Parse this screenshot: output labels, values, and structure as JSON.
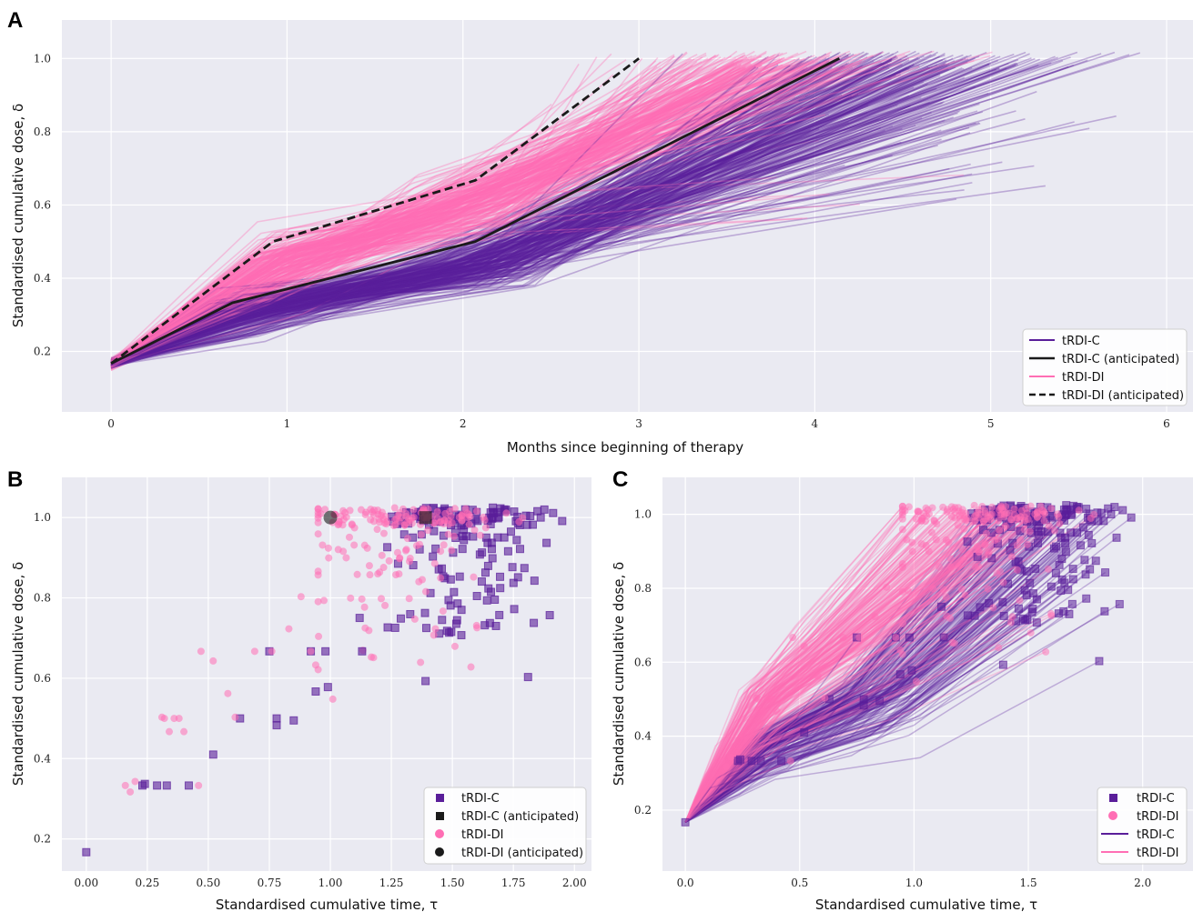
{
  "colors": {
    "bg": "#eaeaf2",
    "grid": "#ffffff",
    "c": "#5a1e9a",
    "di": "#ff6eb4",
    "ant": "#1a1a1a"
  },
  "chart_data": [
    {
      "panel": "A",
      "type": "line",
      "xlabel": "Months since beginning of therapy",
      "ylabel": "Standardised cumulative dose, δ",
      "xlim": [
        -0.28,
        6.15
      ],
      "ylim": [
        0.035,
        1.105
      ],
      "xticks": [
        "0",
        "1",
        "2",
        "3",
        "4",
        "5",
        "6"
      ],
      "yticks": [
        "0.2",
        "0.4",
        "0.6",
        "0.8",
        "1.0"
      ],
      "grid": true,
      "legend_position": "lower right",
      "legend": [
        "tRDI-C",
        "tRDI-C (anticipated)",
        "tRDI-DI",
        "tRDI-DI (anticipated)"
      ],
      "series": [
        {
          "name": "tRDI-C (anticipated)",
          "style": "solid",
          "x": [
            0,
            0.69,
            2.07,
            4.14
          ],
          "y": [
            0.167,
            0.333,
            0.5,
            1.0
          ]
        },
        {
          "name": "tRDI-DI (anticipated)",
          "style": "dashed",
          "x": [
            0,
            0.92,
            2.07,
            3.0
          ],
          "y": [
            0.167,
            0.5,
            0.667,
            1.0
          ]
        }
      ],
      "bundle_note_C": "~250 patient trajectories, final time 2.9–5.9 months",
      "bundle_note_DI": "~250 patient trajectories, final time 2.3–5.8 months"
    },
    {
      "panel": "B",
      "type": "scatter",
      "xlabel": "Standardised cumulative time, τ",
      "ylabel": "Standardised cumulative dose, δ",
      "xlim": [
        -0.1,
        2.07
      ],
      "ylim": [
        0.12,
        1.1
      ],
      "xticks": [
        "0.00",
        "0.25",
        "0.50",
        "0.75",
        "1.00",
        "1.25",
        "1.50",
        "1.75",
        "2.00"
      ],
      "yticks": [
        "0.2",
        "0.4",
        "0.6",
        "0.8",
        "1.0"
      ],
      "grid": true,
      "legend_position": "lower right",
      "legend": [
        "tRDI-C",
        "tRDI-C (anticipated)",
        "tRDI-DI",
        "tRDI-DI (anticipated)"
      ],
      "anticipated": {
        "tRDI-C": [
          1.39,
          1.0
        ],
        "tRDI-DI": [
          1.0,
          1.0
        ]
      },
      "highlighted_points_C": [
        [
          0,
          0.167
        ],
        [
          0.23,
          0.333
        ],
        [
          0.24,
          0.337
        ],
        [
          0.29,
          0.333
        ],
        [
          0.33,
          0.333
        ],
        [
          0.42,
          0.333
        ],
        [
          0.52,
          0.41
        ],
        [
          0.63,
          0.5
        ],
        [
          0.75,
          0.667
        ],
        [
          0.78,
          0.483
        ],
        [
          0.78,
          0.5
        ],
        [
          0.85,
          0.495
        ],
        [
          0.92,
          0.667
        ],
        [
          0.94,
          0.567
        ],
        [
          0.98,
          0.667
        ],
        [
          0.99,
          0.578
        ],
        [
          1.13,
          0.667
        ],
        [
          1.39,
          0.593
        ],
        [
          1.81,
          0.603
        ]
      ],
      "highlighted_points_DI": [
        [
          0.16,
          0.333
        ],
        [
          0.18,
          0.317
        ],
        [
          0.2,
          0.343
        ],
        [
          0.31,
          0.503
        ],
        [
          0.32,
          0.5
        ],
        [
          0.34,
          0.467
        ],
        [
          0.36,
          0.5
        ],
        [
          0.38,
          0.5
        ],
        [
          0.4,
          0.467
        ],
        [
          0.46,
          0.333
        ],
        [
          0.47,
          0.667
        ],
        [
          0.52,
          0.643
        ],
        [
          0.58,
          0.562
        ],
        [
          0.61,
          0.503
        ],
        [
          0.69,
          0.667
        ],
        [
          0.76,
          0.667
        ],
        [
          0.83,
          0.723
        ],
        [
          0.88,
          0.803
        ],
        [
          0.92,
          0.667
        ],
        [
          0.94,
          0.633
        ],
        [
          1.01,
          0.548
        ]
      ]
    },
    {
      "panel": "C",
      "type": "line",
      "xlabel": "Standardised cumulative time, τ",
      "ylabel": "Standardised cumulative dose, δ",
      "xlim": [
        -0.1,
        2.22
      ],
      "ylim": [
        0.035,
        1.1
      ],
      "xticks": [
        "0.0",
        "0.5",
        "1.0",
        "1.5",
        "2.0"
      ],
      "yticks": [
        "0.2",
        "0.4",
        "0.6",
        "0.8",
        "1.0"
      ],
      "grid": true,
      "legend_position": "lower right",
      "legend": [
        "tRDI-C",
        "tRDI-DI",
        "tRDI-C",
        "tRDI-DI"
      ]
    }
  ]
}
